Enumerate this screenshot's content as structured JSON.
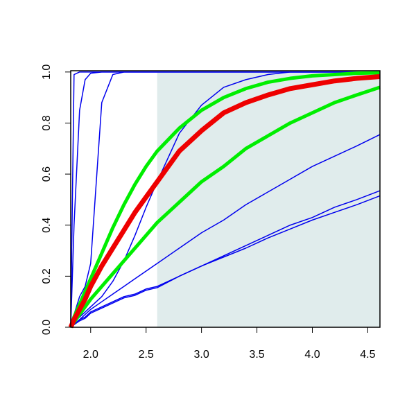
{
  "chart_data": {
    "type": "line",
    "x": [
      1.82,
      1.85,
      1.9,
      1.95,
      2.0,
      2.1,
      2.2,
      2.3,
      2.4,
      2.5,
      2.6,
      2.8,
      3.0,
      3.2,
      3.4,
      3.6,
      3.8,
      4.0,
      4.2,
      4.4,
      4.61
    ],
    "xlim": [
      1.82,
      4.61
    ],
    "ylim": [
      0,
      1.005
    ],
    "xticks": [
      {
        "value": 2,
        "label": "2.0"
      },
      2.5,
      {
        "value": 3,
        "label": "3.0"
      },
      3.5,
      {
        "value": 4,
        "label": "4.0"
      },
      4.5
    ],
    "yticks": [
      {
        "value": 0,
        "label": "0.0"
      },
      0.2,
      0.4,
      0.6,
      0.8,
      {
        "value": 1,
        "label": "1.0"
      }
    ],
    "shaded_region": {
      "x": [
        2.6,
        4.61
      ],
      "y": [
        0,
        1
      ],
      "color": "#e0ecec"
    },
    "series": [
      {
        "color": "#0000ee",
        "line_width": 1.5,
        "values": [
          0,
          0.99,
          1,
          1,
          1,
          1,
          1,
          1,
          1,
          1,
          1,
          1,
          1,
          1,
          1,
          1,
          1,
          1,
          1,
          1,
          1
        ]
      },
      {
        "color": "#0000ee",
        "line_width": 1.5,
        "values": [
          0,
          0.4,
          0.85,
          0.97,
          0.995,
          1,
          1,
          1,
          1,
          1,
          1,
          1,
          1,
          1,
          1,
          1,
          1,
          1,
          1,
          1,
          1
        ]
      },
      {
        "color": "#0000ee",
        "line_width": 1.5,
        "values": [
          0,
          0.05,
          0.12,
          0.16,
          0.25,
          0.88,
          0.99,
          1,
          1,
          1,
          1,
          1,
          1,
          1,
          1,
          1,
          1,
          1,
          1,
          1,
          1
        ]
      },
      {
        "color": "#0000ee",
        "line_width": 1.5,
        "values": [
          0,
          0.02,
          0.04,
          0.06,
          0.08,
          0.12,
          0.18,
          0.26,
          0.36,
          0.47,
          0.57,
          0.76,
          0.87,
          0.94,
          0.97,
          0.99,
          1,
          1,
          1,
          1,
          1
        ]
      },
      {
        "color": "#0000ee",
        "line_width": 1.5,
        "values": [
          0,
          0.01,
          0.03,
          0.05,
          0.07,
          0.1,
          0.13,
          0.16,
          0.19,
          0.22,
          0.25,
          0.31,
          0.37,
          0.42,
          0.48,
          0.53,
          0.58,
          0.63,
          0.67,
          0.71,
          0.755
        ]
      },
      {
        "color": "#0000ee",
        "line_width": 1.5,
        "values": [
          0,
          0.01,
          0.03,
          0.04,
          0.06,
          0.08,
          0.1,
          0.12,
          0.13,
          0.15,
          0.16,
          0.2,
          0.24,
          0.28,
          0.32,
          0.36,
          0.4,
          0.43,
          0.47,
          0.5,
          0.535
        ]
      },
      {
        "color": "#0000ee",
        "line_width": 1.5,
        "values": [
          0,
          0.01,
          0.025,
          0.035,
          0.055,
          0.075,
          0.095,
          0.115,
          0.125,
          0.145,
          0.155,
          0.2,
          0.24,
          0.275,
          0.31,
          0.35,
          0.385,
          0.42,
          0.45,
          0.48,
          0.515
        ]
      },
      {
        "color": "#00ee00",
        "line_width": 5,
        "values": [
          0,
          0.04,
          0.09,
          0.14,
          0.19,
          0.29,
          0.39,
          0.48,
          0.56,
          0.63,
          0.69,
          0.78,
          0.85,
          0.9,
          0.935,
          0.96,
          0.975,
          0.985,
          0.99,
          0.995,
          0.997
        ]
      },
      {
        "color": "#00ee00",
        "line_width": 5,
        "values": [
          0,
          0.02,
          0.05,
          0.08,
          0.11,
          0.16,
          0.21,
          0.26,
          0.31,
          0.36,
          0.41,
          0.49,
          0.57,
          0.63,
          0.7,
          0.75,
          0.8,
          0.84,
          0.88,
          0.91,
          0.94
        ]
      },
      {
        "color": "#ee0000",
        "line_width": 7,
        "values": [
          0,
          0.03,
          0.07,
          0.11,
          0.16,
          0.24,
          0.31,
          0.38,
          0.45,
          0.51,
          0.57,
          0.69,
          0.77,
          0.84,
          0.88,
          0.91,
          0.935,
          0.95,
          0.965,
          0.975,
          0.982
        ]
      }
    ]
  }
}
